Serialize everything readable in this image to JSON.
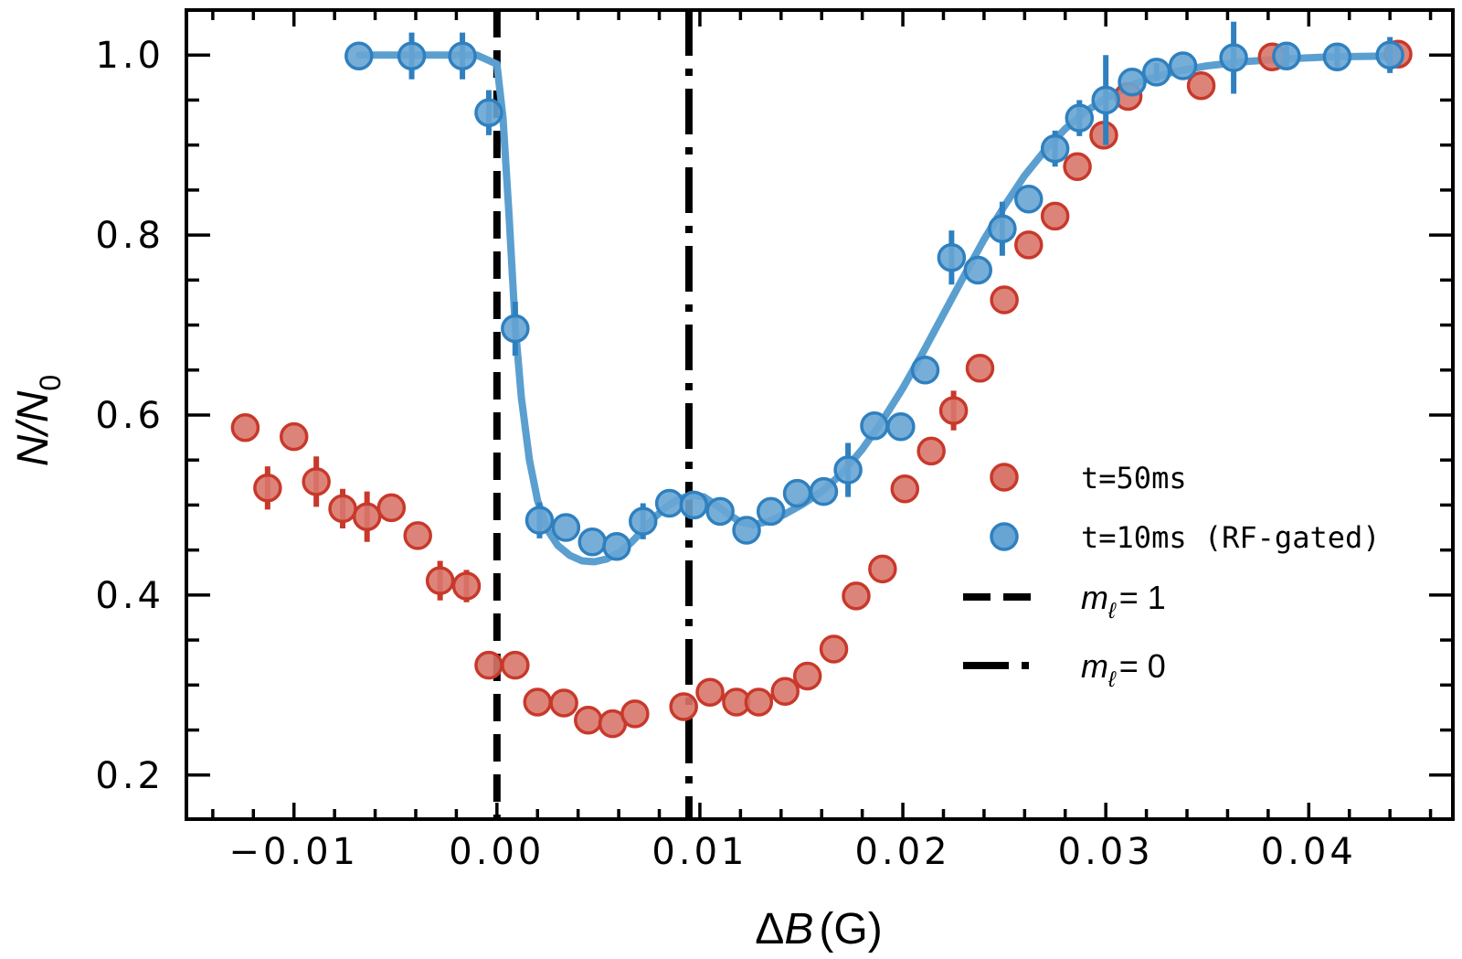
{
  "chart_data": {
    "type": "scatter",
    "title": "",
    "xlabel": "ΔB (G)",
    "xlabel_parts": {
      "delta": "Δ",
      "var": "B",
      "unit": "(G)"
    },
    "ylabel": "N/N0",
    "ylabel_parts": {
      "num": "N",
      "slash": "/",
      "den": "N",
      "sub": "0"
    },
    "xlim": [
      -0.0153,
      0.0471
    ],
    "ylim": [
      0.151,
      1.05
    ],
    "x_major_ticks": [
      -0.01,
      0.0,
      0.01,
      0.02,
      0.03,
      0.04
    ],
    "x_tick_labels": [
      "−0.01",
      "0.00",
      "0.01",
      "0.02",
      "0.03",
      "0.04"
    ],
    "x_minor_step": 0.002,
    "y_major_ticks": [
      0.2,
      0.4,
      0.6,
      0.8,
      1.0
    ],
    "y_tick_labels": [
      "0.2",
      "0.4",
      "0.6",
      "0.8",
      "1.0"
    ],
    "y_minor_step": 0.05,
    "grid": false,
    "legend_position": "center-right",
    "series": [
      {
        "name": "t=50ms",
        "kind": "scatter",
        "color_edge": "#c8392b",
        "color_fill": "#d9776c",
        "x": [
          -0.0124,
          -0.0113,
          -0.01,
          -0.0089,
          -0.0076,
          -0.0064,
          -0.0052,
          -0.0039,
          -0.0028,
          -0.0015,
          -0.0004,
          0.0009,
          0.002,
          0.0033,
          0.0045,
          0.0057,
          0.0068,
          0.0092,
          0.0105,
          0.0118,
          0.0129,
          0.0142,
          0.0153,
          0.0166,
          0.0177,
          0.019,
          0.0201,
          0.0214,
          0.0225,
          0.0238,
          0.025,
          0.0262,
          0.0275,
          0.0286,
          0.0299,
          0.0311,
          0.0347,
          0.0382,
          0.0444
        ],
        "y": [
          0.586,
          0.519,
          0.576,
          0.526,
          0.496,
          0.487,
          0.497,
          0.466,
          0.416,
          0.41,
          0.322,
          0.322,
          0.281,
          0.28,
          0.261,
          0.257,
          0.268,
          0.276,
          0.292,
          0.281,
          0.281,
          0.293,
          0.31,
          0.34,
          0.399,
          0.429,
          0.518,
          0.56,
          0.605,
          0.652,
          0.728,
          0.789,
          0.821,
          0.876,
          0.911,
          0.954,
          0.966,
          0.998,
          1.001
        ],
        "yerr": [
          0,
          0.024,
          0,
          0.028,
          0.022,
          0.028,
          0,
          0,
          0.022,
          0.018,
          0,
          0,
          0,
          0,
          0,
          0,
          0,
          0,
          0,
          0,
          0,
          0,
          0,
          0,
          0,
          0,
          0,
          0,
          0.022,
          0,
          0,
          0,
          0,
          0,
          0,
          0,
          0,
          0,
          0
        ]
      },
      {
        "name": "t=10ms (RF-gated)",
        "kind": "scatter",
        "color_edge": "#2f80bf",
        "color_fill": "#68a5d4",
        "x": [
          -0.0068,
          -0.0042,
          -0.0017,
          -0.0004,
          0.0009,
          0.0021,
          0.0034,
          0.0047,
          0.0059,
          0.0072,
          0.0085,
          0.0097,
          0.011,
          0.0123,
          0.0135,
          0.0148,
          0.0161,
          0.0173,
          0.0186,
          0.0199,
          0.0211,
          0.0224,
          0.0237,
          0.0249,
          0.0262,
          0.0275,
          0.0287,
          0.03,
          0.0313,
          0.0325,
          0.0338,
          0.0363,
          0.0389,
          0.0414,
          0.044
        ],
        "y": [
          0.999,
          0.999,
          0.999,
          0.936,
          0.696,
          0.483,
          0.475,
          0.459,
          0.454,
          0.482,
          0.502,
          0.5,
          0.493,
          0.472,
          0.493,
          0.513,
          0.515,
          0.539,
          0.588,
          0.587,
          0.65,
          0.775,
          0.761,
          0.807,
          0.84,
          0.896,
          0.93,
          0.95,
          0.97,
          0.981,
          0.988,
          0.997,
          0.999,
          0.998,
          1.0
        ],
        "yerr": [
          0,
          0.026,
          0.026,
          0.025,
          0.03,
          0.02,
          0,
          0,
          0,
          0.02,
          0,
          0,
          0,
          0,
          0,
          0,
          0,
          0.03,
          0,
          0,
          0,
          0.03,
          0,
          0.03,
          0,
          0.02,
          0.02,
          0.05,
          0,
          0.01,
          0,
          0.04,
          0.015,
          0.015,
          0.02
        ]
      },
      {
        "name": "fit (t=10ms)",
        "kind": "line",
        "color": "#5b9fd0",
        "x": [
          -0.0068,
          -0.001,
          0.0,
          0.0003,
          0.0006,
          0.0009,
          0.0012,
          0.0016,
          0.002,
          0.0025,
          0.003,
          0.0036,
          0.0042,
          0.0048,
          0.0054,
          0.006,
          0.0066,
          0.0072,
          0.0078,
          0.0084,
          0.009,
          0.0096,
          0.0102,
          0.0108,
          0.0114,
          0.012,
          0.0126,
          0.0134,
          0.0142,
          0.015,
          0.016,
          0.017,
          0.018,
          0.019,
          0.02,
          0.021,
          0.022,
          0.023,
          0.024,
          0.025,
          0.026,
          0.027,
          0.028,
          0.029,
          0.03,
          0.031,
          0.032,
          0.0335,
          0.035,
          0.037,
          0.039,
          0.041,
          0.044
        ],
        "y": [
          1.0,
          1.0,
          0.99,
          0.93,
          0.82,
          0.7,
          0.62,
          0.55,
          0.505,
          0.472,
          0.455,
          0.444,
          0.438,
          0.437,
          0.44,
          0.447,
          0.458,
          0.472,
          0.487,
          0.499,
          0.507,
          0.511,
          0.509,
          0.5,
          0.49,
          0.481,
          0.478,
          0.482,
          0.49,
          0.5,
          0.515,
          0.535,
          0.562,
          0.594,
          0.63,
          0.67,
          0.712,
          0.754,
          0.795,
          0.832,
          0.866,
          0.894,
          0.918,
          0.937,
          0.952,
          0.964,
          0.973,
          0.982,
          0.988,
          0.993,
          0.996,
          0.998,
          0.999
        ]
      }
    ],
    "vlines": [
      {
        "name": "m_ℓ = 1",
        "x": 0.0,
        "style": "dashed",
        "color": "#000000"
      },
      {
        "name": "m_ℓ = 0",
        "x": 0.00946,
        "style": "dashdot",
        "color": "#000000"
      }
    ],
    "legend": [
      {
        "label": "t=50ms",
        "marker": "circle",
        "series": 0
      },
      {
        "label": "t=10ms (RF-gated)",
        "marker": "circle",
        "series": 1
      },
      {
        "label_var": "m",
        "label_sub": "ℓ",
        "label_rest": "= 1",
        "marker": "dashed-line"
      },
      {
        "label_var": "m",
        "label_sub": "ℓ",
        "label_rest": "= 0",
        "marker": "dashdot-line"
      }
    ]
  }
}
